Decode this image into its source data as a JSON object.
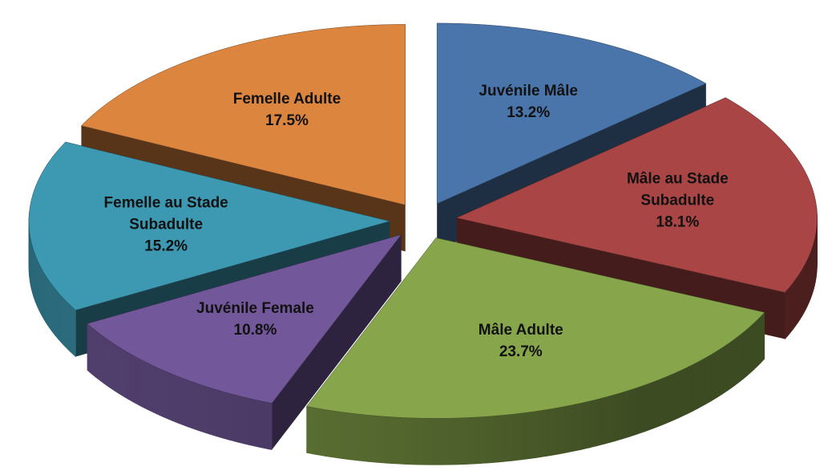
{
  "chart_data": {
    "type": "pie",
    "categories": [
      "Juvénile Mâle",
      "Mâle au Stade Subadulte",
      "Mâle Adulte",
      "Juvénile Female",
      "Femelle au Stade Subadulte",
      "Femelle Adulte"
    ],
    "values": [
      13.2,
      18.1,
      23.7,
      10.8,
      15.2,
      17.5
    ],
    "value_labels": [
      "13.2%",
      "18.1%",
      "23.7%",
      "10.8%",
      "15.2%",
      "17.5%"
    ],
    "colors": [
      "#4a75ab",
      "#a94545",
      "#87a64b",
      "#72589a",
      "#3d99b2",
      "#dc853f"
    ]
  }
}
